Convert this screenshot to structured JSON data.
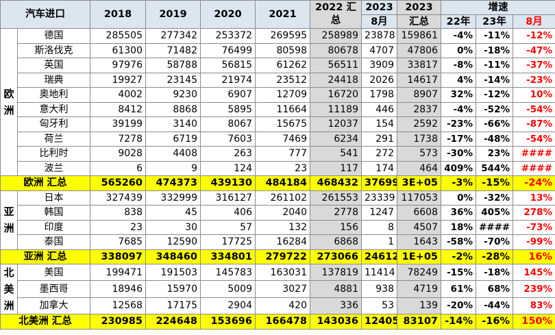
{
  "header": {
    "title": "汽车进口",
    "y2018": "2018",
    "y2019": "2019",
    "y2020": "2020",
    "y2021": "2021",
    "y2022_sum": "2022 汇总",
    "y2023_aug_top": "2023",
    "y2023_aug_bottom": "8月",
    "y2023_sum_top": "2023",
    "y2023_sum_bottom": "汇总",
    "growth": "增速",
    "g22": "22年",
    "g23": "23年",
    "gaug": "8月"
  },
  "regions": {
    "europe": "欧洲",
    "asia": "亚洲",
    "north_america": "北美洲"
  },
  "europe_rows": [
    {
      "name": "德国",
      "v2018": "285505",
      "v2019": "277342",
      "v2020": "253372",
      "v2021": "269595",
      "v2022": "258989",
      "aug": "23878",
      "sum2023": "159861",
      "g22": "-4%",
      "g23": "-11%",
      "gaug": "-12%"
    },
    {
      "name": "斯洛伐克",
      "v2018": "61300",
      "v2019": "71482",
      "v2020": "76499",
      "v2021": "80598",
      "v2022": "80678",
      "aug": "4707",
      "sum2023": "47806",
      "g22": "0%",
      "g23": "-18%",
      "gaug": "-47%"
    },
    {
      "name": "英国",
      "v2018": "97976",
      "v2019": "58788",
      "v2020": "56815",
      "v2021": "61262",
      "v2022": "56511",
      "aug": "3909",
      "sum2023": "33817",
      "g22": "-8%",
      "g23": "-11%",
      "gaug": "-37%"
    },
    {
      "name": "瑞典",
      "v2018": "19927",
      "v2019": "23145",
      "v2020": "21974",
      "v2021": "23512",
      "v2022": "24418",
      "aug": "2026",
      "sum2023": "14617",
      "g22": "4%",
      "g23": "-14%",
      "gaug": "-23%"
    },
    {
      "name": "奥地利",
      "v2018": "4002",
      "v2019": "9230",
      "v2020": "6907",
      "v2021": "12709",
      "v2022": "16720",
      "aug": "1798",
      "sum2023": "8907",
      "g22": "32%",
      "g23": "-12%",
      "gaug": "10%"
    },
    {
      "name": "意大利",
      "v2018": "8412",
      "v2019": "8868",
      "v2020": "5895",
      "v2021": "11664",
      "v2022": "11189",
      "aug": "446",
      "sum2023": "2837",
      "g22": "-4%",
      "g23": "-52%",
      "gaug": "-54%"
    },
    {
      "name": "匈牙利",
      "v2018": "39199",
      "v2019": "3140",
      "v2020": "8067",
      "v2021": "15675",
      "v2022": "12037",
      "aug": "154",
      "sum2023": "2592",
      "g22": "-23%",
      "g23": "-66%",
      "gaug": "-87%"
    },
    {
      "name": "荷兰",
      "v2018": "7278",
      "v2019": "6719",
      "v2020": "7603",
      "v2021": "7469",
      "v2022": "6234",
      "aug": "291",
      "sum2023": "1738",
      "g22": "-17%",
      "g23": "-48%",
      "gaug": "-54%"
    },
    {
      "name": "比利时",
      "v2018": "9028",
      "v2019": "4408",
      "v2020": "263",
      "v2021": "777",
      "v2022": "541",
      "aug": "272",
      "sum2023": "573",
      "g22": "-30%",
      "g23": "23%",
      "gaug": "####"
    },
    {
      "name": "波兰",
      "v2018": "6",
      "v2019": "9",
      "v2020": "124",
      "v2021": "23",
      "v2022": "117",
      "aug": "174",
      "sum2023": "464",
      "g22": "409%",
      "g23": "544%",
      "gaug": "####"
    }
  ],
  "europe_total": {
    "name": "欧洲 汇总",
    "v2018": "565260",
    "v2019": "474373",
    "v2020": "439130",
    "v2021": "484184",
    "v2022": "468432",
    "aug": "37699",
    "sum2023": "3E+05",
    "g22": "-3%",
    "g23": "-15%",
    "gaug": "-24%"
  },
  "asia_rows": [
    {
      "name": "日本",
      "v2018": "327439",
      "v2019": "332999",
      "v2020": "316127",
      "v2021": "261102",
      "v2022": "261553",
      "aug": "23339",
      "sum2023": "117053",
      "g22": "0%",
      "g23": "-32%",
      "gaug": "13%"
    },
    {
      "name": "韩国",
      "v2018": "838",
      "v2019": "45",
      "v2020": "406",
      "v2021": "2040",
      "v2022": "2778",
      "aug": "1247",
      "sum2023": "6608",
      "g22": "36%",
      "g23": "405%",
      "gaug": "278%"
    },
    {
      "name": "印度",
      "v2018": "23",
      "v2019": "30",
      "v2020": "57",
      "v2021": "132",
      "v2022": "156",
      "aug": "8",
      "sum2023": "4507",
      "g22": "18%",
      "g23": "####",
      "gaug": "-73%"
    },
    {
      "name": "泰国",
      "v2018": "7685",
      "v2019": "12590",
      "v2020": "17725",
      "v2021": "16284",
      "v2022": "6868",
      "aug": "1",
      "sum2023": "1643",
      "g22": "-58%",
      "g23": "-70%",
      "gaug": "-99%"
    }
  ],
  "asia_total": {
    "name": "亚洲 汇总",
    "v2018": "338097",
    "v2019": "348460",
    "v2020": "334801",
    "v2021": "279722",
    "v2022": "273066",
    "aug": "24612",
    "sum2023": "1E+05",
    "g22": "-2%",
    "g23": "-28%",
    "gaug": "16%"
  },
  "na_rows": [
    {
      "name": "美国",
      "v2018": "199471",
      "v2019": "191503",
      "v2020": "145783",
      "v2021": "163031",
      "v2022": "137819",
      "aug": "11414",
      "sum2023": "78249",
      "g22": "-15%",
      "g23": "-18%",
      "gaug": "145%"
    },
    {
      "name": "墨西哥",
      "v2018": "18946",
      "v2019": "15970",
      "v2020": "5009",
      "v2021": "3027",
      "v2022": "4881",
      "aug": "938",
      "sum2023": "4719",
      "g22": "61%",
      "g23": "68%",
      "gaug": "239%"
    },
    {
      "name": "加拿大",
      "v2018": "12568",
      "v2019": "17175",
      "v2020": "2904",
      "v2021": "420",
      "v2022": "336",
      "aug": "53",
      "sum2023": "139",
      "g22": "-20%",
      "g23": "-44%",
      "gaug": "83%"
    }
  ],
  "na_total": {
    "name": "北美洲 汇总",
    "v2018": "230985",
    "v2019": "224648",
    "v2020": "153696",
    "v2021": "166478",
    "v2022": "143036",
    "aug": "12405",
    "sum2023": "83107",
    "g22": "-14%",
    "g23": "-16%",
    "gaug": "150%"
  },
  "colors": {
    "header_bg": "#dce6f1",
    "highlight_gray": "#d9d9d9",
    "subtotal_bg": "#ffff00",
    "negative_red": "#ff0000",
    "triangle_green": "#00b050"
  }
}
